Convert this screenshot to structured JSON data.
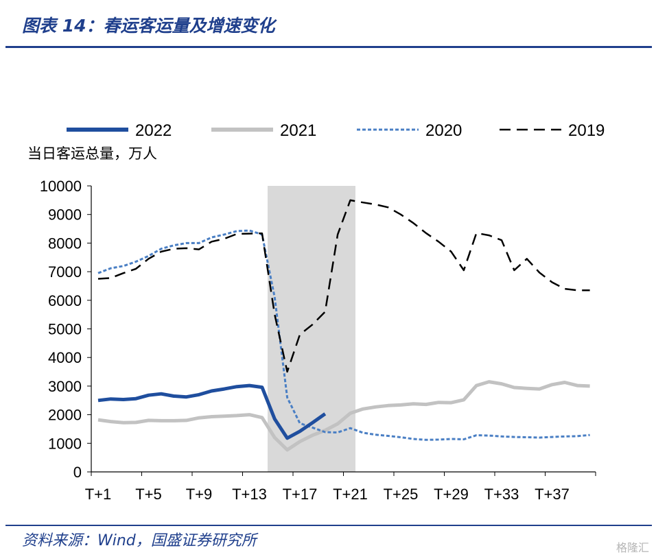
{
  "header": {
    "title": "图表 14：春运客运量及增速变化"
  },
  "footer": {
    "source": "资料来源：Wind，国盛证券研究所",
    "watermark": "格隆汇"
  },
  "chart_data": {
    "type": "line",
    "ylabel": "当日客运总量，万人",
    "ylim": [
      0,
      10000
    ],
    "yticks": [
      0,
      1000,
      2000,
      3000,
      4000,
      5000,
      6000,
      7000,
      8000,
      9000,
      10000
    ],
    "xlim": [
      1,
      40
    ],
    "xticks": [
      1,
      5,
      9,
      13,
      17,
      21,
      25,
      29,
      33,
      37
    ],
    "xtick_labels": [
      "T+1",
      "T+5",
      "T+9",
      "T+13",
      "T+17",
      "T+21",
      "T+25",
      "T+29",
      "T+33",
      "T+37"
    ],
    "shaded_range": [
      15,
      22
    ],
    "legend_position": "top",
    "grid": false,
    "series": [
      {
        "name": "2022",
        "color": "#1f4e9e",
        "style": "solid",
        "width": 5,
        "x": [
          1,
          2,
          3,
          4,
          5,
          6,
          7,
          8,
          9,
          10,
          11,
          12,
          13,
          14,
          15,
          16,
          17,
          18,
          19
        ],
        "values": [
          2500,
          2550,
          2530,
          2560,
          2680,
          2730,
          2650,
          2620,
          2700,
          2830,
          2900,
          2980,
          3020,
          2960,
          1850,
          1180,
          1420,
          1720,
          2030
        ]
      },
      {
        "name": "2021",
        "color": "#c2c2c2",
        "style": "solid",
        "width": 5,
        "x": [
          1,
          2,
          3,
          4,
          5,
          6,
          7,
          8,
          9,
          10,
          11,
          12,
          13,
          14,
          15,
          16,
          17,
          18,
          19,
          20,
          21,
          22,
          23,
          24,
          25,
          26,
          27,
          28,
          29,
          30,
          31,
          32,
          33,
          34,
          35,
          36,
          37,
          38,
          39,
          40
        ],
        "values": [
          1820,
          1760,
          1720,
          1730,
          1800,
          1790,
          1790,
          1800,
          1890,
          1930,
          1950,
          1970,
          2000,
          1900,
          1200,
          770,
          1060,
          1280,
          1450,
          1680,
          2050,
          2200,
          2270,
          2320,
          2340,
          2380,
          2360,
          2430,
          2420,
          2520,
          3020,
          3150,
          3080,
          2950,
          2920,
          2900,
          3050,
          3130,
          3020,
          3000
        ]
      },
      {
        "name": "2020",
        "color": "#4a7fc4",
        "style": "dotted",
        "width": 3,
        "x": [
          1,
          2,
          3,
          4,
          5,
          6,
          7,
          8,
          9,
          10,
          11,
          12,
          13,
          14,
          15,
          16,
          17,
          18,
          19,
          20,
          21,
          22,
          23,
          24,
          25,
          26,
          27,
          28,
          29,
          30,
          31,
          32,
          33,
          34,
          35,
          36,
          37,
          38,
          39,
          40
        ],
        "values": [
          6950,
          7120,
          7200,
          7350,
          7550,
          7800,
          7920,
          8000,
          8000,
          8200,
          8300,
          8420,
          8440,
          8300,
          6100,
          2600,
          1700,
          1550,
          1390,
          1380,
          1530,
          1370,
          1300,
          1260,
          1210,
          1150,
          1120,
          1130,
          1150,
          1140,
          1280,
          1270,
          1240,
          1220,
          1210,
          1200,
          1220,
          1240,
          1250,
          1290
        ]
      },
      {
        "name": "2019",
        "color": "#000000",
        "style": "dashed",
        "width": 2.5,
        "x": [
          1,
          2,
          3,
          4,
          5,
          6,
          7,
          8,
          9,
          10,
          11,
          12,
          13,
          14,
          15,
          16,
          17,
          18,
          19,
          20,
          21,
          22,
          23,
          24,
          25,
          26,
          27,
          28,
          29,
          30,
          31,
          32,
          33,
          34,
          35,
          36,
          37,
          38,
          39,
          40
        ],
        "values": [
          6750,
          6780,
          6950,
          7100,
          7450,
          7700,
          7800,
          7820,
          7780,
          8050,
          8150,
          8320,
          8330,
          8340,
          5500,
          3500,
          4800,
          5150,
          5600,
          8300,
          9500,
          9420,
          9350,
          9250,
          9000,
          8700,
          8350,
          8050,
          7700,
          7050,
          8350,
          8270,
          8100,
          7050,
          7450,
          6970,
          6630,
          6400,
          6350,
          6350
        ]
      }
    ]
  }
}
